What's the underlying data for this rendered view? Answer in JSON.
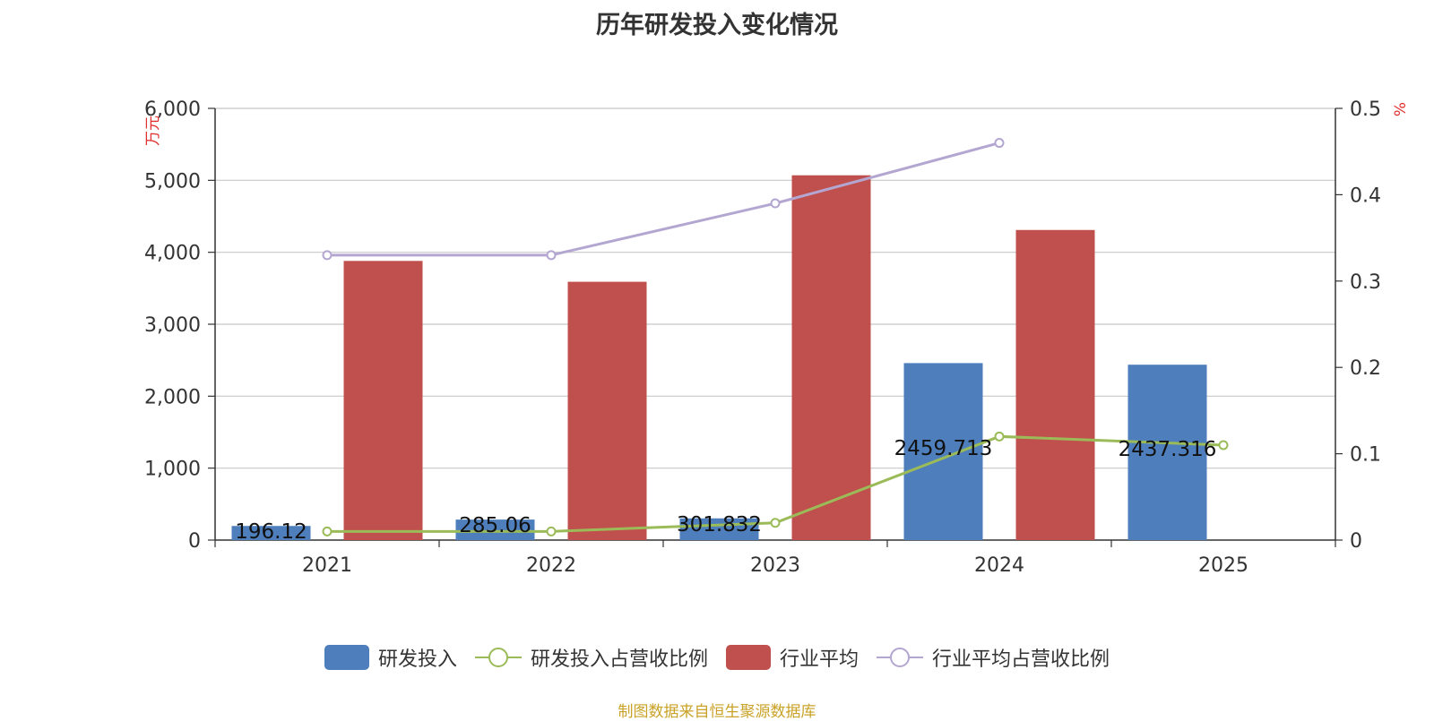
{
  "title": "历年研发投入变化情况",
  "source": "制图数据来自恒生聚源数据库",
  "chart_data": {
    "type": "bar",
    "categories": [
      "2021",
      "2022",
      "2023",
      "2024",
      "2025"
    ],
    "left_axis": {
      "unit": "万元",
      "ylim": [
        0,
        6000
      ],
      "ticks": [
        "0",
        "1,000",
        "2,000",
        "3,000",
        "4,000",
        "5,000",
        "6,000"
      ]
    },
    "right_axis": {
      "unit": "%",
      "ylim": [
        0,
        0.5
      ],
      "ticks": [
        "0",
        "0.1",
        "0.2",
        "0.3",
        "0.4",
        "0.5"
      ]
    },
    "series": [
      {
        "name": "研发投入",
        "kind": "bar",
        "axis": "left",
        "color": "#4e7fbc",
        "values": [
          196.12,
          285.06,
          301.832,
          2459.713,
          2437.316
        ],
        "labels": [
          "196.12",
          "285.06",
          "301.832",
          "2459.713",
          "2437.316"
        ]
      },
      {
        "name": "研发投入占营收比例",
        "kind": "line",
        "axis": "right",
        "color": "#9bbb59",
        "values": [
          0.01,
          0.01,
          0.02,
          0.12,
          0.11
        ]
      },
      {
        "name": "行业平均",
        "kind": "bar",
        "axis": "left",
        "color": "#c0504d",
        "values": [
          3880,
          3590,
          5070,
          4310,
          null
        ]
      },
      {
        "name": "行业平均占营收比例",
        "kind": "line",
        "axis": "right",
        "color": "#b3a6d1",
        "values": [
          0.33,
          0.33,
          0.39,
          0.46,
          null
        ]
      }
    ],
    "grid": true,
    "legend_position": "bottom"
  }
}
